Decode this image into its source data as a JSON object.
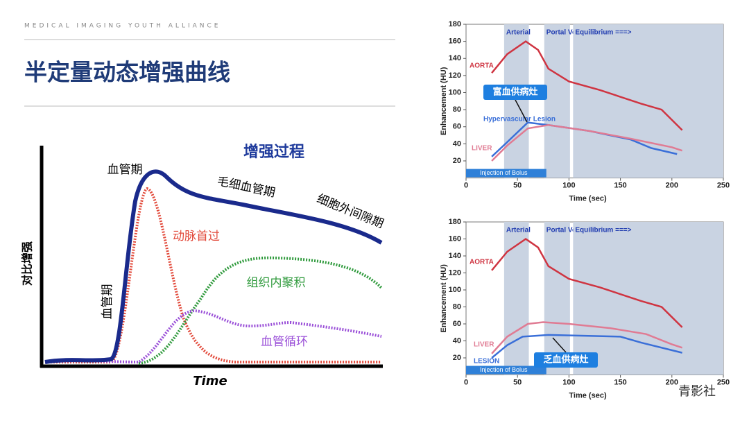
{
  "header": {
    "tagline": "MEDICAL IMAGING YOUTH ALLIANCE",
    "title": "半定量动态增强曲线"
  },
  "diagram": {
    "title": "增强过程",
    "y_label": "对比增强",
    "x_label": "Time",
    "labels": [
      "血管期",
      "毛细血管期",
      "细胞外间隙期",
      "动脉首过",
      "组织内聚积",
      "血管循环",
      "血管期"
    ]
  },
  "watermark": "青影社",
  "chart_data": [
    {
      "type": "line",
      "xlabel": "Time (sec)",
      "ylabel": "Enhancement (HU)",
      "xlim": [
        0,
        250
      ],
      "xticks": [
        0,
        50,
        100,
        150,
        200,
        250
      ],
      "ylim": [
        0,
        180
      ],
      "yticks": [
        20,
        40,
        60,
        80,
        100,
        120,
        140,
        160,
        180
      ],
      "phases": [
        {
          "name": "Arterial",
          "start": 37,
          "end": 61,
          "color": "#c9d3e2"
        },
        {
          "name": "Portal Venous",
          "start": 76,
          "end": 101,
          "color": "#c9d3e2"
        },
        {
          "name": "Equilibrium ===>",
          "start": 104,
          "end": 250,
          "color": "#c9d3e2"
        }
      ],
      "bolus": {
        "label": "Injection of Bolus",
        "start": 0,
        "end": 78,
        "color": "#2f80d8"
      },
      "annotation": "富血供病灶",
      "series": [
        {
          "name": "AORTA",
          "color": "#cf3441",
          "x": [
            25,
            40,
            58,
            70,
            80,
            100,
            130,
            170,
            190,
            200,
            210
          ],
          "values": [
            123,
            145,
            160,
            150,
            128,
            113,
            103,
            87,
            80,
            68,
            56
          ]
        },
        {
          "name": "Hypervascular Lesion",
          "color": "#3a6fd8",
          "x": [
            25,
            40,
            60,
            80,
            120,
            160,
            180,
            205
          ],
          "values": [
            25,
            42,
            65,
            62,
            55,
            45,
            35,
            28
          ]
        },
        {
          "name": "LIVER",
          "color": "#e07b93",
          "x": [
            25,
            40,
            60,
            80,
            120,
            160,
            200,
            210
          ],
          "values": [
            20,
            38,
            58,
            62,
            55,
            46,
            36,
            32
          ]
        }
      ]
    },
    {
      "type": "line",
      "xlabel": "Time (sec)",
      "ylabel": "Enhancement (HU)",
      "xlim": [
        0,
        250
      ],
      "xticks": [
        0,
        50,
        100,
        150,
        200,
        250
      ],
      "ylim": [
        0,
        180
      ],
      "yticks": [
        20,
        40,
        60,
        80,
        100,
        120,
        140,
        160,
        180
      ],
      "phases": [
        {
          "name": "Arterial",
          "start": 37,
          "end": 61,
          "color": "#c9d3e2"
        },
        {
          "name": "Portal Venous",
          "start": 76,
          "end": 101,
          "color": "#c9d3e2"
        },
        {
          "name": "Equilibrium ===>",
          "start": 104,
          "end": 250,
          "color": "#c9d3e2"
        }
      ],
      "bolus": {
        "label": "Injection of Bolus",
        "start": 0,
        "end": 78,
        "color": "#2f80d8"
      },
      "annotation": "乏血供病灶",
      "series": [
        {
          "name": "AORTA",
          "color": "#cf3441",
          "x": [
            25,
            40,
            58,
            70,
            80,
            100,
            130,
            170,
            190,
            200,
            210
          ],
          "values": [
            123,
            145,
            160,
            150,
            128,
            113,
            103,
            87,
            80,
            68,
            56
          ]
        },
        {
          "name": "LIVER",
          "color": "#e07b93",
          "x": [
            25,
            40,
            60,
            75,
            100,
            140,
            175,
            200,
            210
          ],
          "values": [
            25,
            45,
            60,
            62,
            60,
            55,
            48,
            36,
            32
          ]
        },
        {
          "name": "LESION",
          "color": "#3a6fd8",
          "x": [
            25,
            40,
            55,
            80,
            150,
            170,
            210
          ],
          "values": [
            20,
            35,
            45,
            47,
            45,
            38,
            26
          ]
        }
      ]
    }
  ]
}
